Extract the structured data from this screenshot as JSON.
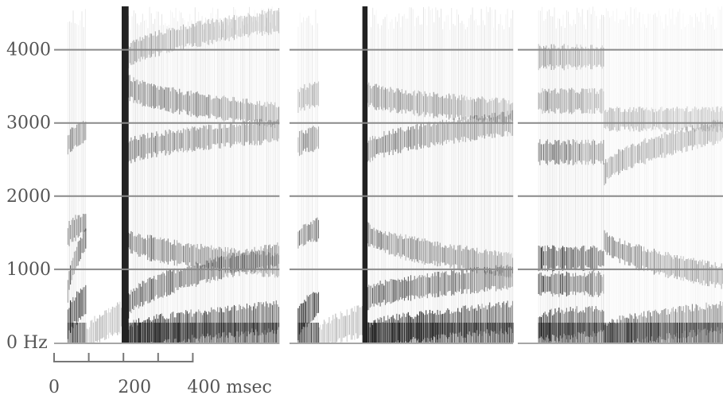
{
  "chart_data": {
    "type": "heatmap",
    "title": "",
    "xlabel": "",
    "ylabel": "",
    "y_ticks": [
      {
        "value": 0,
        "label": "0 Hz"
      },
      {
        "value": 1000,
        "label": "1000"
      },
      {
        "value": 2000,
        "label": "2000"
      },
      {
        "value": 3000,
        "label": "3000"
      },
      {
        "value": 4000,
        "label": "4000"
      }
    ],
    "x_ticks": [
      {
        "value": 0,
        "label": "0"
      },
      {
        "value": 100,
        "label": ""
      },
      {
        "value": 200,
        "label": "200"
      },
      {
        "value": 300,
        "label": ""
      },
      {
        "value": 400,
        "label": "400 msec"
      }
    ],
    "ylim": [
      0,
      4600
    ],
    "grid": true,
    "color_scale": "grayscale (darker = more energy)",
    "panels": [
      {
        "duration_ms": 650,
        "segments": [
          {
            "t0": 40,
            "t1": 95,
            "kind": "voiced",
            "formants": [
              [
                250,
                600,
                0.85
              ],
              [
                700,
                1450,
                0.6
              ],
              [
                1450,
                1650,
                0.45
              ],
              [
                2700,
                2900,
                0.45
              ]
            ]
          },
          {
            "t0": 95,
            "t1": 195,
            "kind": "closure",
            "formants": [
              [
                0,
                350,
                0.3
              ]
            ]
          },
          {
            "t0": 195,
            "t1": 215,
            "kind": "burst",
            "formants": [
              [
                0,
                4600,
                0.95
              ]
            ]
          },
          {
            "t0": 215,
            "t1": 650,
            "kind": "vowel",
            "formants": [
              [
                50,
                350,
                0.9
              ],
              [
                500,
                1200,
                0.7
              ],
              [
                1400,
                1050,
                0.55
              ],
              [
                2600,
                2900,
                0.55
              ],
              [
                3500,
                3100,
                0.55
              ],
              [
                3900,
                4400,
                0.35
              ]
            ]
          }
        ]
      },
      {
        "duration_ms": 645,
        "segments": [
          {
            "t0": 25,
            "t1": 85,
            "kind": "voiced",
            "formants": [
              [
                250,
                550,
                0.85
              ],
              [
                1400,
                1550,
                0.55
              ],
              [
                2700,
                2800,
                0.45
              ],
              [
                3300,
                3400,
                0.35
              ]
            ]
          },
          {
            "t0": 85,
            "t1": 210,
            "kind": "closure",
            "formants": [
              [
                0,
                300,
                0.3
              ]
            ]
          },
          {
            "t0": 210,
            "t1": 225,
            "kind": "burst",
            "formants": [
              [
                0,
                4600,
                1.0
              ]
            ]
          },
          {
            "t0": 225,
            "t1": 645,
            "kind": "vowel",
            "formants": [
              [
                50,
                350,
                0.9
              ],
              [
                600,
                900,
                0.7
              ],
              [
                1500,
                1050,
                0.55
              ],
              [
                2600,
                3000,
                0.55
              ],
              [
                3400,
                3150,
                0.45
              ]
            ]
          }
        ]
      },
      {
        "duration_ms": 595,
        "segments": [
          {
            "t0": 60,
            "t1": 250,
            "kind": "vowel",
            "formants": [
              [
                200,
                300,
                0.85
              ],
              [
                800,
                800,
                0.8
              ],
              [
                1150,
                1150,
                0.85
              ],
              [
                2600,
                2600,
                0.6
              ],
              [
                3300,
                3300,
                0.45
              ],
              [
                3900,
                3900,
                0.4
              ]
            ]
          },
          {
            "t0": 250,
            "t1": 595,
            "kind": "weak",
            "formants": [
              [
                50,
                350,
                0.65
              ],
              [
                1400,
                900,
                0.5
              ],
              [
                2300,
                2900,
                0.4
              ],
              [
                3050,
                3050,
                0.3
              ]
            ]
          }
        ]
      }
    ]
  }
}
